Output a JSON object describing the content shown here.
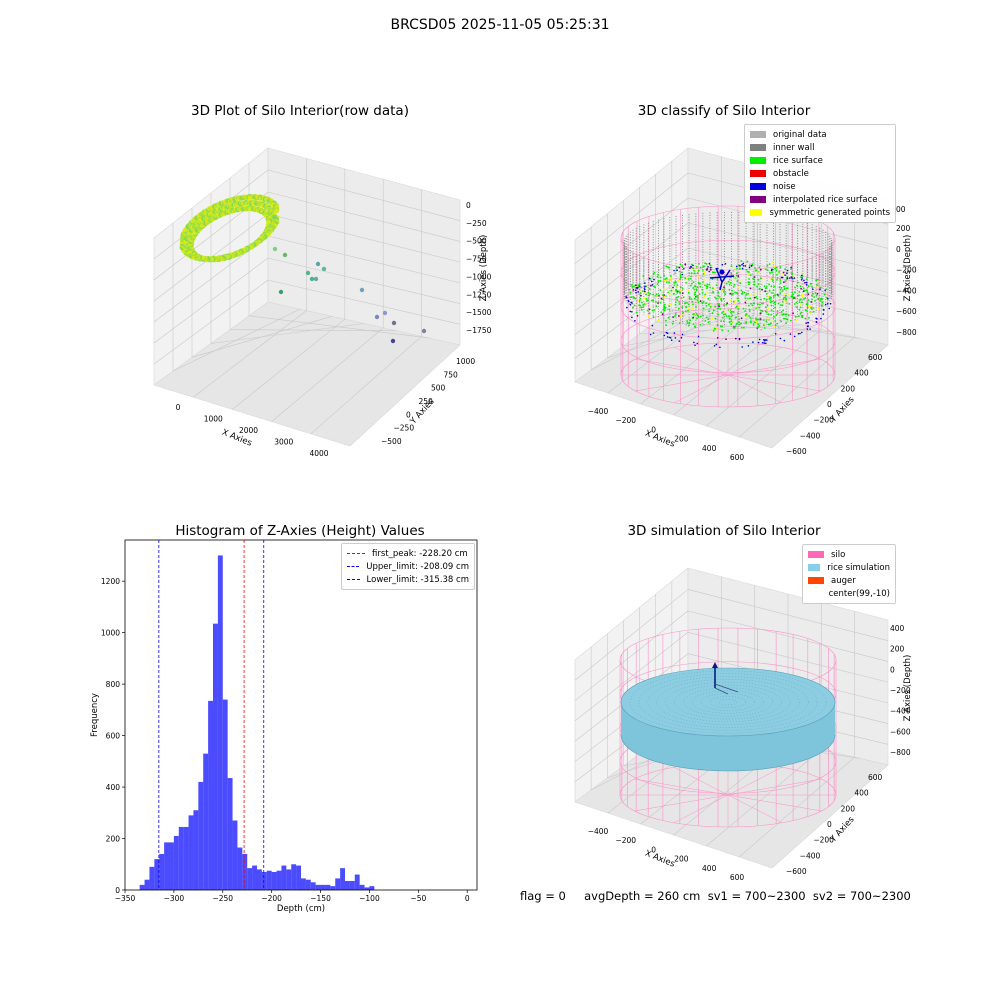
{
  "suptitle": "BRCSD05 2025-11-05 05:25:31",
  "panels": {
    "raw": {
      "title": "3D Plot of Silo Interior(row data)",
      "xlabel": "X Axies",
      "ylabel": "Y Axies",
      "zlabel": "Z Axies (Depth)",
      "xticks": [
        "0",
        "1000",
        "2000",
        "3000",
        "4000"
      ],
      "yticks": [
        "−500",
        "−250",
        "0",
        "250",
        "500",
        "750",
        "1000"
      ],
      "zticks": [
        "0",
        "−250",
        "−500",
        "−750",
        "−1000",
        "−1250",
        "−1500",
        "−1750"
      ]
    },
    "classify": {
      "title": "3D classify of Silo Interior",
      "xlabel": "X Axies",
      "ylabel": "Y Axies",
      "zlabel": "Z Axies (Depth)",
      "xticks": [
        "−400",
        "−200",
        "0",
        "200",
        "400",
        "600"
      ],
      "yticks": [
        "−600",
        "−400",
        "−200",
        "0",
        "200",
        "400",
        "600"
      ],
      "zticks": [
        "200",
        "0",
        "−200",
        "−400",
        "−600",
        "−800"
      ],
      "zticks_top": "00",
      "legend": [
        {
          "label": "original data",
          "color": "#b0b0b0"
        },
        {
          "label": "inner wall",
          "color": "#808080"
        },
        {
          "label": "rice surface",
          "color": "#00ee00"
        },
        {
          "label": "obstacle",
          "color": "#ee0000"
        },
        {
          "label": "noise",
          "color": "#0000dd"
        },
        {
          "label": "interpolated rice surface",
          "color": "#800080"
        },
        {
          "label": "symmetric generated points",
          "color": "#ffff00"
        }
      ]
    },
    "simulation": {
      "title": "3D simulation of Silo Interior",
      "xlabel": "X Axies",
      "ylabel": "Y Axies",
      "zlabel": "Z Axies (Depth)",
      "xticks": [
        "−400",
        "−200",
        "0",
        "200",
        "400",
        "600"
      ],
      "yticks": [
        "−600",
        "−400",
        "−200",
        "0",
        "200",
        "400",
        "600"
      ],
      "zticks": [
        "400",
        "200",
        "0",
        "−200",
        "−400",
        "−600",
        "−800"
      ],
      "legend": [
        {
          "label": "silo",
          "color": "#ff69b4"
        },
        {
          "label": "rice simulation",
          "color": "#87ceeb"
        },
        {
          "label": "auger",
          "color": "#ff4500"
        },
        {
          "label": "center(99,-10)",
          "color": ""
        }
      ]
    }
  },
  "status_line": "flag = 0     avgDepth = 260 cm  sv1 = 700~2300  sv2 = 700~2300",
  "chart_data": [
    {
      "type": "scatter",
      "title": "3D Plot of Silo Interior(row data)",
      "xlabel": "X Axies",
      "ylabel": "Y Axies",
      "zlabel": "Z Axies (Depth)",
      "xlim": [
        -500,
        4500
      ],
      "ylim": [
        -600,
        1100
      ],
      "zlim": [
        -1900,
        100
      ],
      "grid": true
    },
    {
      "type": "scatter",
      "title": "3D classify of Silo Interior",
      "xlabel": "X Axies",
      "ylabel": "Y Axies",
      "zlabel": "Z Axies (Depth)",
      "xlim": [
        -500,
        700
      ],
      "ylim": [
        -700,
        700
      ],
      "zlim": [
        -900,
        300
      ],
      "series": [
        {
          "name": "original data"
        },
        {
          "name": "inner wall"
        },
        {
          "name": "rice surface"
        },
        {
          "name": "obstacle"
        },
        {
          "name": "noise"
        },
        {
          "name": "interpolated rice surface"
        },
        {
          "name": "symmetric generated points"
        }
      ],
      "legend_position": "top-right",
      "grid": true
    },
    {
      "type": "bar",
      "title": "Histogram of Z-Axies (Height) Values",
      "xlabel": "Depth (cm)",
      "ylabel": "Frequency",
      "xlim": [
        -350,
        10
      ],
      "ylim": [
        0,
        1360
      ],
      "xticks": [
        -350,
        -300,
        -250,
        -200,
        -150,
        -100,
        -50,
        0
      ],
      "yticks": [
        0,
        200,
        400,
        600,
        800,
        1000,
        1200
      ],
      "bin_width": 5,
      "bin_starts": [
        -340,
        -335,
        -330,
        -325,
        -320,
        -315,
        -310,
        -305,
        -300,
        -295,
        -290,
        -285,
        -280,
        -275,
        -270,
        -265,
        -260,
        -255,
        -250,
        -245,
        -240,
        -235,
        -230,
        -225,
        -220,
        -215,
        -210,
        -205,
        -200,
        -195,
        -190,
        -185,
        -180,
        -175,
        -170,
        -165,
        -160,
        -155,
        -150,
        -145,
        -140,
        -135,
        -130,
        -125,
        -120,
        -115,
        -110,
        -105,
        -100,
        -95,
        -90,
        -85,
        -80,
        -75,
        -70,
        -65,
        -60,
        -55,
        -50,
        -45,
        -40,
        -35,
        -30,
        -25,
        -20,
        -15,
        -10,
        -5,
        0
      ],
      "values": [
        0,
        20,
        40,
        90,
        120,
        140,
        185,
        185,
        210,
        245,
        245,
        290,
        310,
        420,
        530,
        735,
        1035,
        1300,
        740,
        435,
        270,
        165,
        140,
        85,
        95,
        80,
        70,
        75,
        70,
        75,
        95,
        80,
        100,
        95,
        45,
        40,
        30,
        20,
        20,
        20,
        15,
        45,
        85,
        35,
        35,
        60,
        20,
        10,
        15,
        0,
        0,
        0,
        0,
        0,
        0,
        0,
        0,
        0,
        0,
        0,
        0,
        0,
        0,
        0,
        0,
        0,
        0,
        0,
        0
      ],
      "bar_color": "#0000ff",
      "vlines": [
        {
          "name": "first_peak: -228.20 cm",
          "x": -228.2,
          "color": "#ff0000"
        },
        {
          "name": "Upper_limit: -208.09 cm",
          "x": -208.09,
          "color": "#0000ff"
        },
        {
          "name": "Lower_limit: -315.38 cm",
          "x": -315.38,
          "color": "#0000ff"
        }
      ],
      "legend_position": "top-right",
      "grid": false
    },
    {
      "type": "scatter",
      "title": "3D simulation of Silo Interior",
      "xlabel": "X Axies",
      "ylabel": "Y Axies",
      "zlabel": "Z Axies (Depth)",
      "xlim": [
        -500,
        700
      ],
      "ylim": [
        -700,
        700
      ],
      "zlim": [
        -900,
        500
      ],
      "series": [
        {
          "name": "silo"
        },
        {
          "name": "rice simulation"
        },
        {
          "name": "auger"
        },
        {
          "name": "center(99,-10)"
        }
      ],
      "legend_position": "top-right",
      "grid": true
    }
  ]
}
